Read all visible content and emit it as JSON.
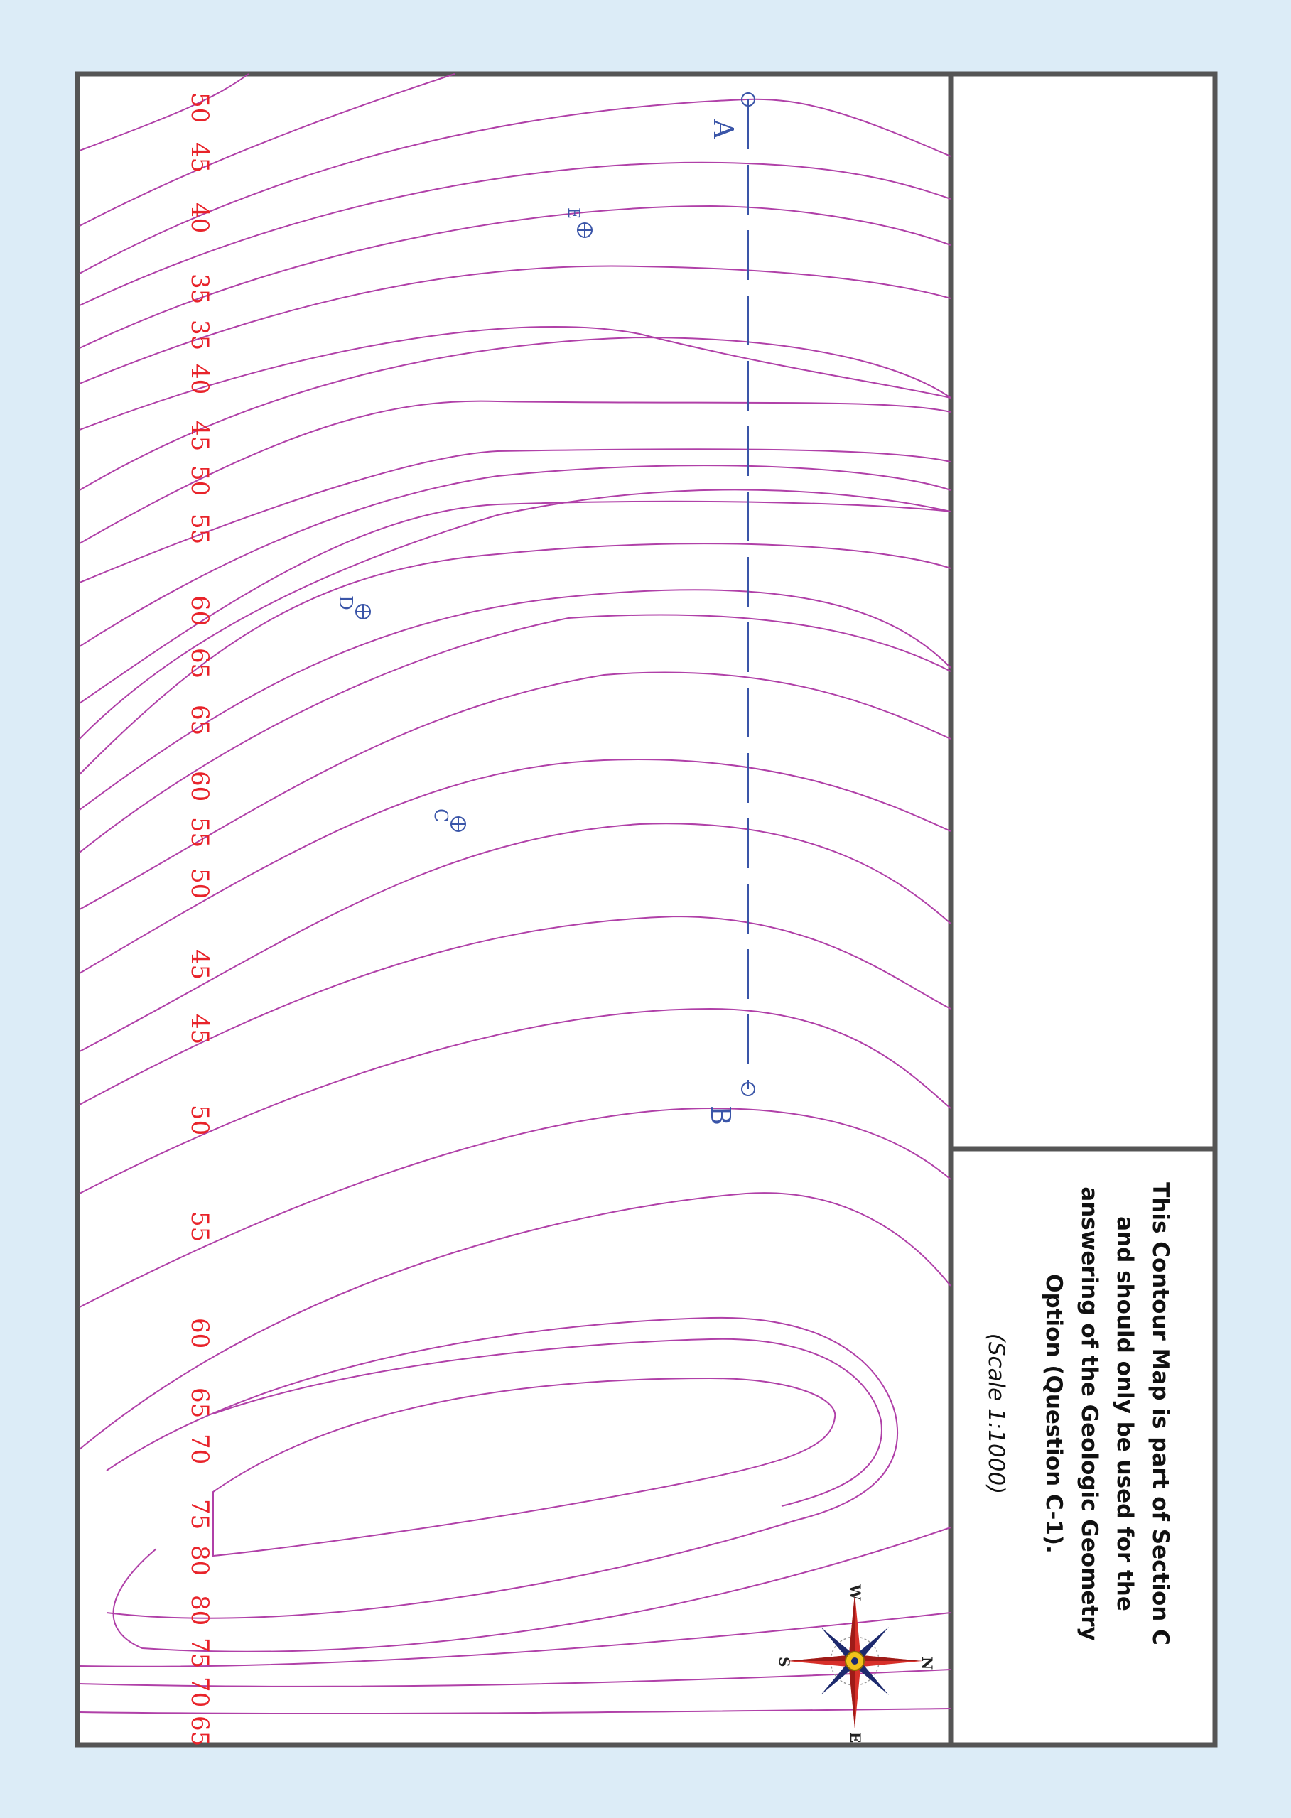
{
  "map": {
    "contour_labels": [
      {
        "id": "c1",
        "text": "50"
      },
      {
        "id": "c2",
        "text": "45"
      },
      {
        "id": "c3",
        "text": "40"
      },
      {
        "id": "c4",
        "text": "35"
      },
      {
        "id": "c5",
        "text": "35"
      },
      {
        "id": "c6",
        "text": "40"
      },
      {
        "id": "c7",
        "text": "45"
      },
      {
        "id": "c8",
        "text": "50"
      },
      {
        "id": "c9",
        "text": "55"
      },
      {
        "id": "c10",
        "text": "60"
      },
      {
        "id": "c11",
        "text": "65"
      },
      {
        "id": "c12",
        "text": "65"
      },
      {
        "id": "c13",
        "text": "60"
      },
      {
        "id": "c14",
        "text": "55"
      },
      {
        "id": "c15",
        "text": "50"
      },
      {
        "id": "c16",
        "text": "45"
      },
      {
        "id": "c17",
        "text": "45"
      },
      {
        "id": "c18",
        "text": "50"
      },
      {
        "id": "c19",
        "text": "55"
      },
      {
        "id": "c20",
        "text": "60"
      },
      {
        "id": "c21",
        "text": "65"
      },
      {
        "id": "c22",
        "text": "70"
      },
      {
        "id": "c23",
        "text": "75"
      },
      {
        "id": "c24",
        "text": "80"
      },
      {
        "id": "c25",
        "text": "80"
      },
      {
        "id": "c26",
        "text": "75"
      },
      {
        "id": "c27",
        "text": "70"
      },
      {
        "id": "c28",
        "text": "65"
      }
    ],
    "points": {
      "A": "A",
      "B": "B",
      "C": "C",
      "D": "D",
      "E": "E"
    },
    "compass": {
      "N": "N",
      "S": "S",
      "E": "E",
      "W": "W"
    },
    "colors": {
      "contour": "#b040a8",
      "label": "#e8232a",
      "section_line": "#3a55a8",
      "background": "#dcecf7"
    }
  },
  "note": {
    "lines": [
      "This Contour Map is part of Section C",
      "and should only be used for the",
      "answering of the Geologic Geometry",
      "Option (Question C-1)."
    ],
    "scale": "(Scale 1:1000)"
  }
}
